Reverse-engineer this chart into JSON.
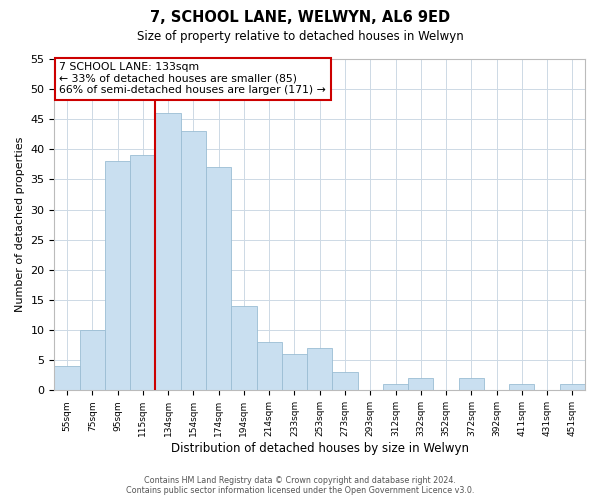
{
  "title": "7, SCHOOL LANE, WELWYN, AL6 9ED",
  "subtitle": "Size of property relative to detached houses in Welwyn",
  "xlabel": "Distribution of detached houses by size in Welwyn",
  "ylabel": "Number of detached properties",
  "bar_labels": [
    "55sqm",
    "75sqm",
    "95sqm",
    "115sqm",
    "134sqm",
    "154sqm",
    "174sqm",
    "194sqm",
    "214sqm",
    "233sqm",
    "253sqm",
    "273sqm",
    "293sqm",
    "312sqm",
    "332sqm",
    "352sqm",
    "372sqm",
    "392sqm",
    "411sqm",
    "431sqm",
    "451sqm"
  ],
  "bar_heights": [
    4,
    10,
    38,
    39,
    46,
    43,
    37,
    14,
    8,
    6,
    7,
    3,
    0,
    1,
    2,
    0,
    2,
    0,
    1,
    0,
    1
  ],
  "bar_color": "#c9dff0",
  "bar_edge_color": "#9bbdd4",
  "vline_color": "#cc0000",
  "annotation_title": "7 SCHOOL LANE: 133sqm",
  "annotation_line1": "← 33% of detached houses are smaller (85)",
  "annotation_line2": "66% of semi-detached houses are larger (171) →",
  "annotation_box_color": "#ffffff",
  "annotation_box_edge": "#cc0000",
  "ylim": [
    0,
    55
  ],
  "yticks": [
    0,
    5,
    10,
    15,
    20,
    25,
    30,
    35,
    40,
    45,
    50,
    55
  ],
  "footer_line1": "Contains HM Land Registry data © Crown copyright and database right 2024.",
  "footer_line2": "Contains public sector information licensed under the Open Government Licence v3.0.",
  "bg_color": "#ffffff",
  "grid_color": "#cdd9e5"
}
